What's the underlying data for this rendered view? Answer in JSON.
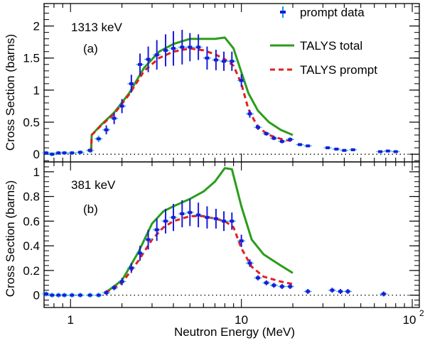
{
  "figure": {
    "xlabel": "Neutron Energy (MeV)",
    "x_ticks": [
      {
        "value": 1,
        "label": "1"
      },
      {
        "value": 10,
        "label": "10"
      },
      {
        "value": 100,
        "label": "10",
        "sup": "2"
      }
    ],
    "x_scale": "log",
    "xlim": [
      0.7,
      110
    ]
  },
  "legend": {
    "placement": "top-right of upper panel",
    "entries": [
      {
        "label": "prompt data",
        "style": "points",
        "color": "#1a1adb",
        "error_color": "#00a0e0"
      },
      {
        "label": "TALYS total",
        "style": "solid",
        "color": "#2a9d1a"
      },
      {
        "label": "TALYS prompt",
        "style": "dashed",
        "color": "#e02020"
      }
    ]
  },
  "colors": {
    "data_points": "#1a1adb",
    "talys_total": "#2a9d1a",
    "talys_prompt": "#e02020",
    "zero_line": "#000000"
  },
  "chart_data": [
    {
      "type": "scatter",
      "panel_label": "(a)",
      "energy_label": "1313 keV",
      "ylabel": "Cross Section (barns)",
      "xlabel": "Neutron Energy (MeV)",
      "x_scale": "log",
      "xlim": [
        0.7,
        110
      ],
      "ylim": [
        -0.12,
        2.35
      ],
      "y_ticks": [
        0,
        0.5,
        1,
        1.5,
        2
      ],
      "y_tick_labels": [
        "0",
        "0.5",
        "1",
        "1.5",
        "2"
      ],
      "zero_line": "dotted",
      "series": [
        {
          "name": "prompt data",
          "points": [
            {
              "x": 0.72,
              "y": 0.02,
              "err": 0.03
            },
            {
              "x": 0.78,
              "y": 0.0,
              "err": 0.03
            },
            {
              "x": 0.85,
              "y": 0.02,
              "err": 0.03
            },
            {
              "x": 0.92,
              "y": 0.02,
              "err": 0.03
            },
            {
              "x": 1.02,
              "y": 0.02,
              "err": 0.03
            },
            {
              "x": 1.14,
              "y": 0.03,
              "err": 0.03
            },
            {
              "x": 1.3,
              "y": 0.06,
              "err": 0.04
            },
            {
              "x": 1.46,
              "y": 0.24,
              "err": 0.05
            },
            {
              "x": 1.62,
              "y": 0.38,
              "err": 0.07
            },
            {
              "x": 1.8,
              "y": 0.56,
              "err": 0.09
            },
            {
              "x": 2.0,
              "y": 0.75,
              "err": 0.11
            },
            {
              "x": 2.27,
              "y": 1.1,
              "err": 0.14
            },
            {
              "x": 2.55,
              "y": 1.4,
              "err": 0.17
            },
            {
              "x": 2.85,
              "y": 1.48,
              "err": 0.2
            },
            {
              "x": 3.2,
              "y": 1.55,
              "err": 0.23
            },
            {
              "x": 3.6,
              "y": 1.62,
              "err": 0.25
            },
            {
              "x": 4.0,
              "y": 1.65,
              "err": 0.27
            },
            {
              "x": 4.5,
              "y": 1.67,
              "err": 0.27
            },
            {
              "x": 5.0,
              "y": 1.67,
              "err": 0.22
            },
            {
              "x": 5.6,
              "y": 1.67,
              "err": 0.2
            },
            {
              "x": 6.3,
              "y": 1.5,
              "err": 0.18
            },
            {
              "x": 7.1,
              "y": 1.47,
              "err": 0.16
            },
            {
              "x": 7.9,
              "y": 1.45,
              "err": 0.15
            },
            {
              "x": 8.8,
              "y": 1.45,
              "err": 0.15
            },
            {
              "x": 10.0,
              "y": 1.15,
              "err": 0.1
            },
            {
              "x": 11.2,
              "y": 0.63,
              "err": 0.06
            },
            {
              "x": 12.5,
              "y": 0.42,
              "err": 0.04
            },
            {
              "x": 14.0,
              "y": 0.32,
              "err": 0.03
            },
            {
              "x": 15.5,
              "y": 0.25,
              "err": 0.03
            },
            {
              "x": 17.3,
              "y": 0.2,
              "err": 0.03
            },
            {
              "x": 19.3,
              "y": 0.23,
              "err": 0.03
            },
            {
              "x": 22.0,
              "y": 0.15,
              "err": 0.02
            },
            {
              "x": 24.5,
              "y": 0.13,
              "err": 0.02
            },
            {
              "x": 32.0,
              "y": 0.1,
              "err": 0.02
            },
            {
              "x": 36.0,
              "y": 0.08,
              "err": 0.02
            },
            {
              "x": 40.0,
              "y": 0.06,
              "err": 0.02
            },
            {
              "x": 45.0,
              "y": 0.07,
              "err": 0.02
            },
            {
              "x": 65.0,
              "y": 0.04,
              "err": 0.02
            },
            {
              "x": 72.0,
              "y": 0.05,
              "err": 0.02
            },
            {
              "x": 80.0,
              "y": 0.04,
              "err": 0.02
            }
          ]
        },
        {
          "name": "TALYS total",
          "line": [
            [
              1.32,
              0.03
            ],
            [
              1.33,
              0.3
            ],
            [
              1.5,
              0.45
            ],
            [
              1.8,
              0.65
            ],
            [
              2.2,
              0.95
            ],
            [
              2.7,
              1.35
            ],
            [
              3.3,
              1.6
            ],
            [
              4.0,
              1.72
            ],
            [
              5.0,
              1.8
            ],
            [
              6.0,
              1.8
            ],
            [
              7.0,
              1.8
            ],
            [
              8.0,
              1.82
            ],
            [
              9.0,
              1.65
            ],
            [
              10.0,
              1.28
            ],
            [
              11.0,
              0.95
            ],
            [
              12.5,
              0.68
            ],
            [
              14.5,
              0.5
            ],
            [
              17.0,
              0.38
            ],
            [
              20.0,
              0.3
            ]
          ]
        },
        {
          "name": "TALYS prompt",
          "line": [
            [
              1.32,
              0.03
            ],
            [
              1.33,
              0.3
            ],
            [
              1.5,
              0.44
            ],
            [
              1.8,
              0.63
            ],
            [
              2.2,
              0.93
            ],
            [
              2.7,
              1.3
            ],
            [
              3.3,
              1.5
            ],
            [
              4.0,
              1.6
            ],
            [
              5.0,
              1.65
            ],
            [
              6.0,
              1.62
            ],
            [
              7.0,
              1.56
            ],
            [
              8.0,
              1.48
            ],
            [
              9.0,
              1.38
            ],
            [
              10.0,
              1.1
            ],
            [
              11.0,
              0.7
            ],
            [
              12.5,
              0.42
            ],
            [
              14.5,
              0.3
            ],
            [
              17.0,
              0.24
            ],
            [
              20.0,
              0.2
            ]
          ]
        }
      ]
    },
    {
      "type": "scatter",
      "panel_label": "(b)",
      "energy_label": "381 keV",
      "ylabel": "Cross Section (barns)",
      "xlabel": "Neutron Energy (MeV)",
      "x_scale": "log",
      "xlim": [
        0.7,
        110
      ],
      "ylim": [
        -0.1,
        1.08
      ],
      "y_ticks": [
        0,
        0.2,
        0.4,
        0.6,
        0.8,
        1
      ],
      "y_tick_labels": [
        "0",
        "0.2",
        "0.4",
        "0.6",
        "0.8",
        "1"
      ],
      "zero_line": "dotted",
      "series": [
        {
          "name": "prompt data",
          "points": [
            {
              "x": 0.72,
              "y": 0.01,
              "err": 0.02
            },
            {
              "x": 0.78,
              "y": 0.0,
              "err": 0.02
            },
            {
              "x": 0.85,
              "y": 0.0,
              "err": 0.02
            },
            {
              "x": 0.92,
              "y": 0.0,
              "err": 0.02
            },
            {
              "x": 1.02,
              "y": 0.0,
              "err": 0.02
            },
            {
              "x": 1.14,
              "y": 0.0,
              "err": 0.02
            },
            {
              "x": 1.3,
              "y": 0.0,
              "err": 0.02
            },
            {
              "x": 1.46,
              "y": 0.0,
              "err": 0.02
            },
            {
              "x": 1.62,
              "y": 0.02,
              "err": 0.02
            },
            {
              "x": 1.8,
              "y": 0.06,
              "err": 0.02
            },
            {
              "x": 2.0,
              "y": 0.11,
              "err": 0.03
            },
            {
              "x": 2.27,
              "y": 0.22,
              "err": 0.04
            },
            {
              "x": 2.55,
              "y": 0.34,
              "err": 0.06
            },
            {
              "x": 2.85,
              "y": 0.45,
              "err": 0.08
            },
            {
              "x": 3.2,
              "y": 0.53,
              "err": 0.09
            },
            {
              "x": 3.6,
              "y": 0.6,
              "err": 0.1
            },
            {
              "x": 4.0,
              "y": 0.63,
              "err": 0.11
            },
            {
              "x": 4.5,
              "y": 0.66,
              "err": 0.11
            },
            {
              "x": 5.0,
              "y": 0.67,
              "err": 0.11
            },
            {
              "x": 5.6,
              "y": 0.65,
              "err": 0.1
            },
            {
              "x": 6.3,
              "y": 0.63,
              "err": 0.09
            },
            {
              "x": 7.1,
              "y": 0.62,
              "err": 0.08
            },
            {
              "x": 7.9,
              "y": 0.6,
              "err": 0.08
            },
            {
              "x": 8.8,
              "y": 0.6,
              "err": 0.07
            },
            {
              "x": 10.0,
              "y": 0.44,
              "err": 0.05
            },
            {
              "x": 11.2,
              "y": 0.26,
              "err": 0.03
            },
            {
              "x": 12.5,
              "y": 0.14,
              "err": 0.02
            },
            {
              "x": 14.0,
              "y": 0.1,
              "err": 0.02
            },
            {
              "x": 15.5,
              "y": 0.08,
              "err": 0.02
            },
            {
              "x": 17.3,
              "y": 0.07,
              "err": 0.02
            },
            {
              "x": 19.3,
              "y": 0.07,
              "err": 0.02
            },
            {
              "x": 24.5,
              "y": 0.03,
              "err": 0.02
            },
            {
              "x": 34.0,
              "y": 0.04,
              "err": 0.02
            },
            {
              "x": 38.0,
              "y": 0.03,
              "err": 0.02
            },
            {
              "x": 42.0,
              "y": 0.03,
              "err": 0.02
            },
            {
              "x": 68.0,
              "y": 0.01,
              "err": 0.02
            }
          ]
        },
        {
          "name": "TALYS total",
          "line": [
            [
              1.6,
              0.02
            ],
            [
              2.0,
              0.12
            ],
            [
              2.5,
              0.35
            ],
            [
              3.0,
              0.58
            ],
            [
              3.5,
              0.68
            ],
            [
              4.0,
              0.72
            ],
            [
              5.0,
              0.78
            ],
            [
              6.0,
              0.84
            ],
            [
              7.0,
              0.92
            ],
            [
              8.0,
              1.03
            ],
            [
              8.8,
              1.02
            ],
            [
              10.0,
              0.72
            ],
            [
              11.5,
              0.45
            ],
            [
              13.5,
              0.33
            ],
            [
              17.0,
              0.24
            ],
            [
              20.0,
              0.18
            ]
          ]
        },
        {
          "name": "TALYS prompt",
          "line": [
            [
              1.6,
              0.02
            ],
            [
              2.0,
              0.1
            ],
            [
              2.5,
              0.28
            ],
            [
              3.0,
              0.45
            ],
            [
              3.5,
              0.55
            ],
            [
              4.0,
              0.6
            ],
            [
              5.0,
              0.64
            ],
            [
              6.0,
              0.64
            ],
            [
              7.0,
              0.62
            ],
            [
              8.0,
              0.6
            ],
            [
              9.0,
              0.55
            ],
            [
              10.0,
              0.38
            ],
            [
              11.5,
              0.23
            ],
            [
              13.5,
              0.15
            ],
            [
              17.0,
              0.11
            ],
            [
              20.0,
              0.09
            ]
          ]
        }
      ]
    }
  ]
}
